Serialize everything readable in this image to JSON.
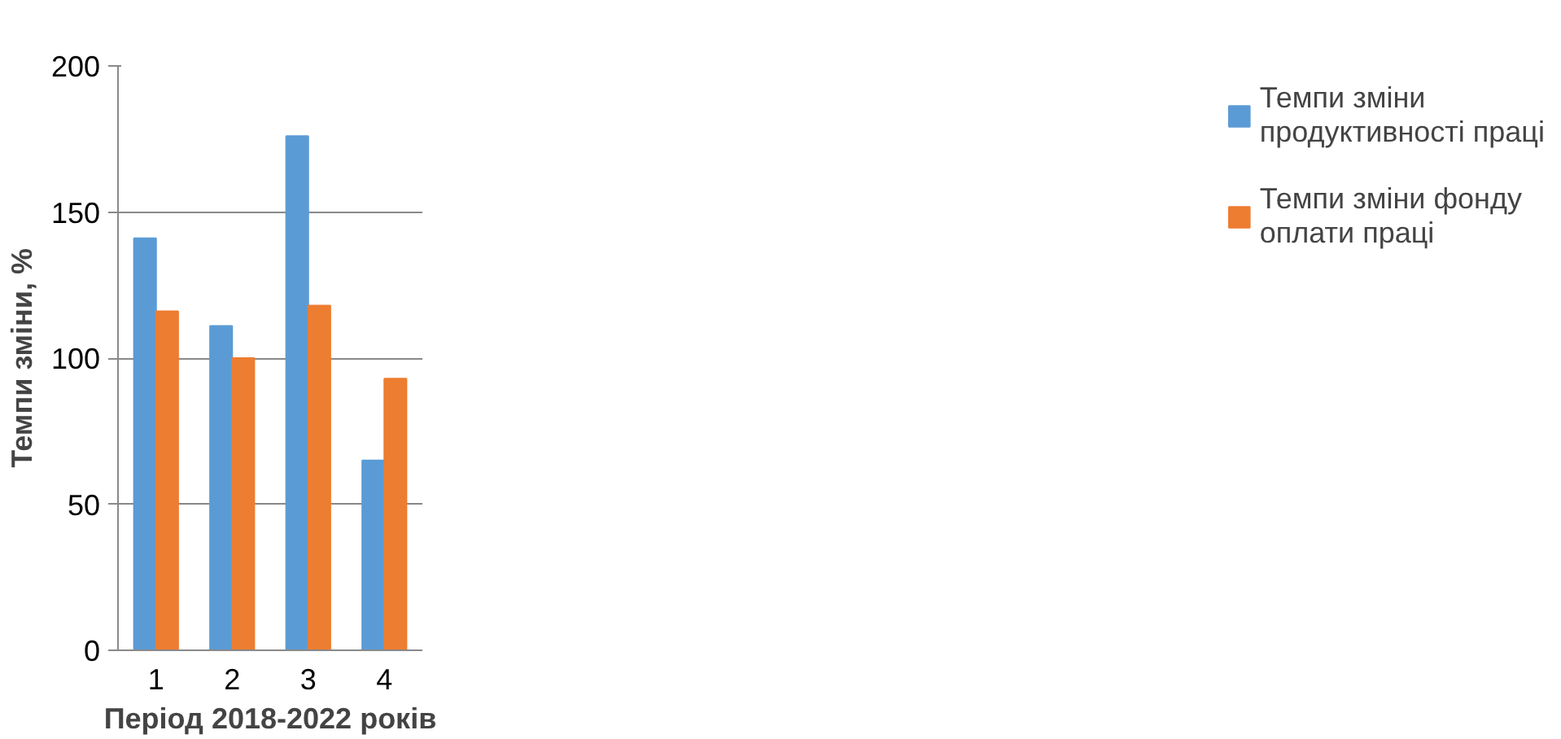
{
  "chart_data": {
    "type": "bar",
    "xlabel": "Період 2018-2022 років",
    "ylabel": "Темпи зміни, %",
    "categories": [
      "1",
      "2",
      "3",
      "4"
    ],
    "series": [
      {
        "name": "Темпи зміни продуктивності праці",
        "color": "#5b9bd5",
        "values": [
          141,
          111,
          176,
          65
        ]
      },
      {
        "name": "Темпи зміни фонду оплати праці",
        "color": "#ed7d31",
        "values": [
          116,
          100,
          118,
          93
        ]
      }
    ],
    "ylim": [
      0,
      200
    ],
    "yticks": [
      0,
      50,
      100,
      150,
      200
    ],
    "grid": "y",
    "legend": "right"
  }
}
